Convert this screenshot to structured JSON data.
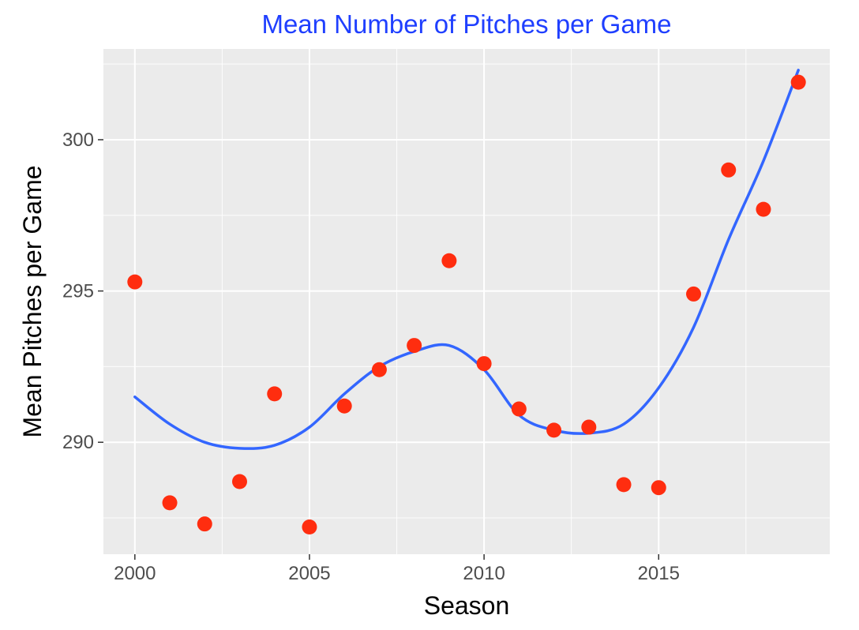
{
  "chart_data": {
    "type": "scatter",
    "title": "Mean Number of Pitches per Game",
    "xlabel": "Season",
    "ylabel": "Mean Pitches per Game",
    "xlim": [
      1999.1,
      2019.9
    ],
    "ylim": [
      286.3,
      303.0
    ],
    "x_ticks": [
      2000,
      2005,
      2010,
      2015
    ],
    "x_tick_labels": [
      "2000",
      "2005",
      "2010",
      "2015"
    ],
    "y_ticks": [
      290,
      295,
      300
    ],
    "y_tick_labels": [
      "290",
      "295",
      "300"
    ],
    "x_minor": [
      2002.5,
      2007.5,
      2012.5,
      2017.5
    ],
    "y_minor": [
      287.5,
      292.5,
      297.5,
      302.5
    ],
    "grid": true,
    "panel_background": "#ebebeb",
    "point_color": "#ff2d0f",
    "line_color": "#3366ff",
    "title_color": "#1f3fff",
    "series": [
      {
        "type": "scatter",
        "x": [
          2000,
          2001,
          2002,
          2003,
          2004,
          2005,
          2006,
          2007,
          2008,
          2009,
          2010,
          2011,
          2012,
          2013,
          2014,
          2015,
          2016,
          2017,
          2018,
          2019
        ],
        "y": [
          295.3,
          288.0,
          287.3,
          288.7,
          291.6,
          287.2,
          291.2,
          292.4,
          293.2,
          296.0,
          292.6,
          291.1,
          290.4,
          290.5,
          288.6,
          288.5,
          294.9,
          299.0,
          297.7,
          301.9
        ]
      },
      {
        "type": "line",
        "x": [
          2000,
          2001,
          2002,
          2003,
          2004,
          2005,
          2006,
          2007,
          2008,
          2009,
          2010,
          2011,
          2012,
          2013,
          2014,
          2015,
          2016,
          2017,
          2018,
          2019
        ],
        "y": [
          291.5,
          290.6,
          290.0,
          289.8,
          289.9,
          290.5,
          291.6,
          292.5,
          293.0,
          293.2,
          292.4,
          290.9,
          290.4,
          290.3,
          290.6,
          291.8,
          293.8,
          296.7,
          299.3,
          302.3
        ]
      }
    ]
  }
}
